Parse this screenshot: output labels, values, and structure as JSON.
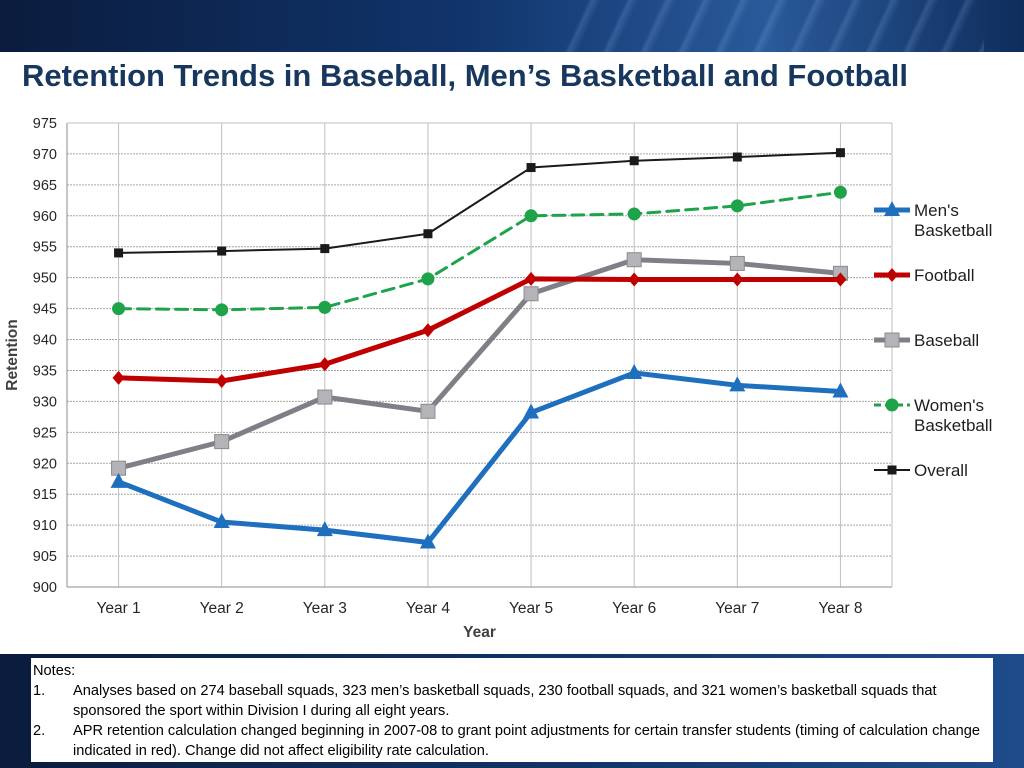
{
  "title": "Retention Trends in Baseball, Men’s Basketball and Football",
  "notes": {
    "heading": "Notes:",
    "items": [
      {
        "num": "1.",
        "text": "Analyses based on 274 baseball squads, 323 men’s basketball squads, 230 football squads, and 321 women’s basketball squads that sponsored the sport within Division I during all eight years."
      },
      {
        "num": "2.",
        "text": "APR retention calculation changed  beginning in 2007-08 to grant point adjustments for certain transfer students (timing of calculation change indicated in red). Change did not affect eligibility rate calculation."
      }
    ]
  },
  "chart_data": {
    "type": "line",
    "xlabel": "Year",
    "ylabel": "Retention",
    "categories": [
      "Year 1",
      "Year 2",
      "Year 3",
      "Year 4",
      "Year 5",
      "Year 6",
      "Year 7",
      "Year 8"
    ],
    "ylim": [
      900,
      975
    ],
    "yticks": [
      900,
      905,
      910,
      915,
      920,
      925,
      930,
      935,
      940,
      945,
      950,
      955,
      960,
      965,
      970,
      975
    ],
    "grid": true,
    "legend_position": "right",
    "series": [
      {
        "name": "Men's Basketball",
        "color": "#1f6fbf",
        "marker": "triangle",
        "dash": "solid",
        "width": 5,
        "values": [
          917,
          910.5,
          909.2,
          907.2,
          928.2,
          934.6,
          932.6,
          931.6
        ]
      },
      {
        "name": "Football",
        "color": "#c00000",
        "marker": "diamond",
        "dash": "solid",
        "width": 5,
        "values": [
          933.8,
          933.3,
          936,
          941.5,
          949.8,
          949.7,
          949.7,
          949.7
        ]
      },
      {
        "name": "Baseball",
        "color": "#7f7f87",
        "marker": "square",
        "dash": "solid",
        "width": 5,
        "values": [
          919.2,
          923.5,
          930.7,
          928.4,
          947.4,
          952.9,
          952.3,
          950.7
        ]
      },
      {
        "name": "Women's Basketball",
        "color": "#1fa34a",
        "marker": "circle",
        "dash": "dashed",
        "width": 3,
        "values": [
          945,
          944.8,
          945.2,
          949.8,
          960,
          960.3,
          961.6,
          963.8
        ]
      },
      {
        "name": "Overall",
        "color": "#1a1a1a",
        "marker": "square-small",
        "dash": "solid",
        "width": 2,
        "values": [
          954,
          954.3,
          954.7,
          957.1,
          967.8,
          968.9,
          969.5,
          970.2
        ]
      }
    ]
  }
}
